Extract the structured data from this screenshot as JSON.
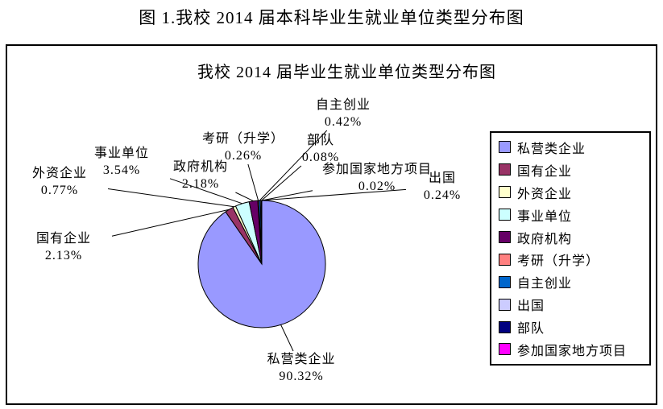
{
  "page": {
    "caption": "图 1.我校 2014 届本科毕业生就业单位类型分布图"
  },
  "chart_data": {
    "type": "pie",
    "title": "我校 2014 届毕业生就业单位类型分布图",
    "unit": "percent",
    "start_angle_deg": 0,
    "direction": "clockwise",
    "legend_position": "right",
    "grid": false,
    "slices": [
      {
        "label": "私营类企业",
        "value": 90.32,
        "display": "90.32%",
        "color": "#9999FF"
      },
      {
        "label": "国有企业",
        "value": 2.13,
        "display": "2.13%",
        "color": "#993366"
      },
      {
        "label": "外资企业",
        "value": 0.77,
        "display": "0.77%",
        "color": "#FFFFCC"
      },
      {
        "label": "事业单位",
        "value": 3.54,
        "display": "3.54%",
        "color": "#CCFFFF"
      },
      {
        "label": "政府机构",
        "value": 2.18,
        "display": "2.18%",
        "color": "#660066"
      },
      {
        "label": "考研（升学）",
        "value": 0.26,
        "display": "0.26%",
        "color": "#FF8080"
      },
      {
        "label": "自主创业",
        "value": 0.42,
        "display": "0.42%",
        "color": "#0066CC"
      },
      {
        "label": "出国",
        "value": 0.24,
        "display": "0.24%",
        "color": "#CCCCFF"
      },
      {
        "label": "部队",
        "value": 0.08,
        "display": "0.08%",
        "color": "#000080"
      },
      {
        "label": "参加国家地方项目",
        "value": 0.02,
        "display": "0.02%",
        "color": "#FF00FF"
      }
    ],
    "legend_order": [
      "私营类企业",
      "国有企业",
      "外资企业",
      "事业单位",
      "政府机构",
      "考研（升学）",
      "自主创业",
      "出国",
      "部队",
      "参加国家地方项目"
    ],
    "colors": {
      "outline": "#000000",
      "background": "#FFFFFF"
    }
  }
}
